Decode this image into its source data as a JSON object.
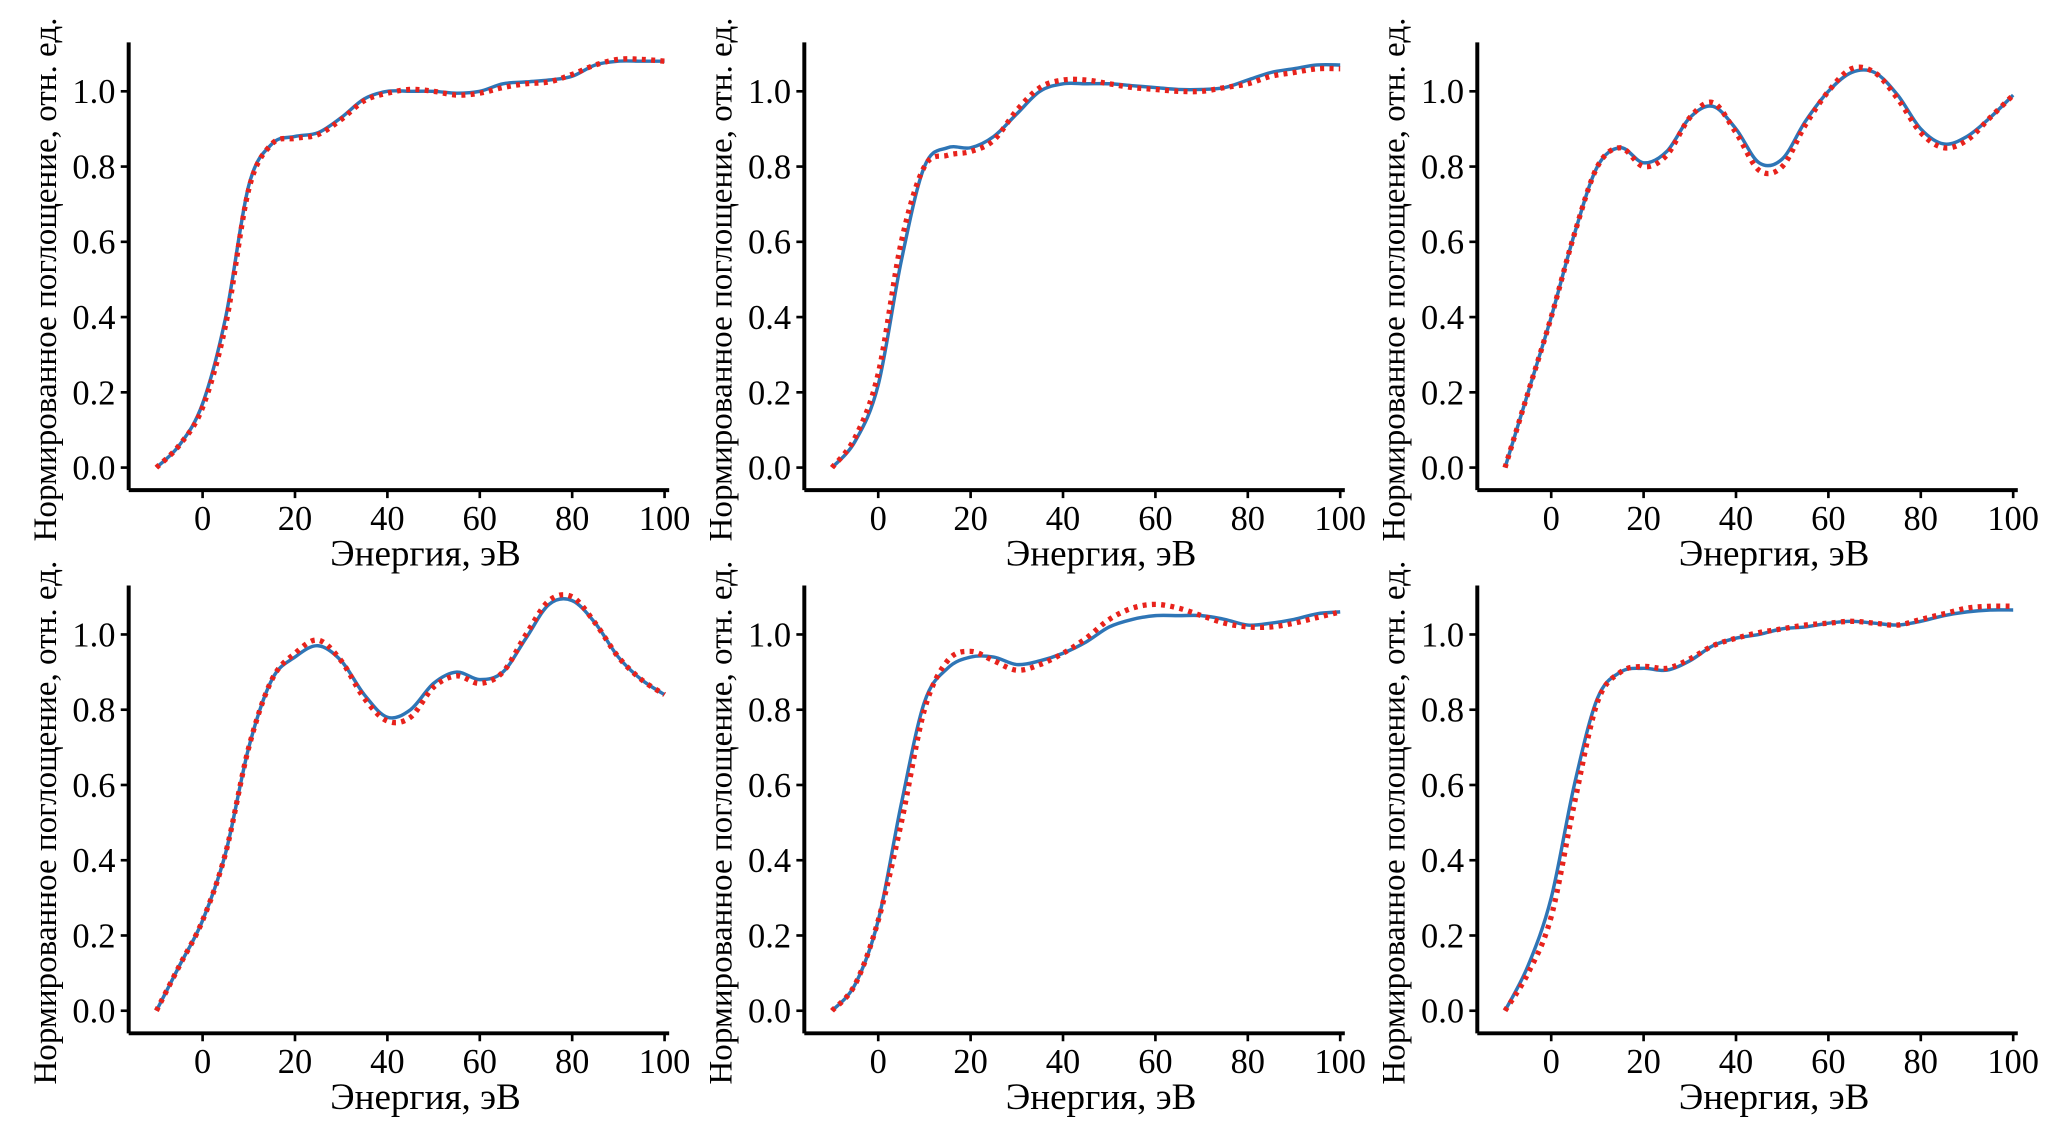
{
  "chart_data": [
    {
      "type": "line",
      "xlabel": "Энергия, эВ",
      "ylabel": "Нормированное поглощение, отн. ед.",
      "x": [
        -10,
        -5,
        0,
        5,
        10,
        15,
        20,
        25,
        30,
        35,
        40,
        45,
        50,
        55,
        60,
        65,
        70,
        75,
        80,
        85,
        90,
        95,
        100
      ],
      "xlim": [
        -16,
        101
      ],
      "ylim": [
        -0.06,
        1.13
      ],
      "xticks": [
        0,
        20,
        40,
        60,
        80,
        100
      ],
      "yticks": [
        {
          "value": 0,
          "label": "0.0"
        },
        {
          "value": 0.2,
          "label": "0.2"
        },
        {
          "value": 0.4,
          "label": "0.4"
        },
        {
          "value": 0.6,
          "label": "0.6"
        },
        {
          "value": 0.8,
          "label": "0.8"
        },
        {
          "value": 1,
          "label": "1.0"
        }
      ],
      "series": [
        {
          "color": "#2e75b6",
          "dash": "solid",
          "values": [
            0,
            0.06,
            0.17,
            0.4,
            0.75,
            0.86,
            0.88,
            0.89,
            0.93,
            0.98,
            1.0,
            1.0,
            1.0,
            0.995,
            1.0,
            1.02,
            1.025,
            1.03,
            1.04,
            1.07,
            1.08,
            1.08,
            1.08
          ]
        },
        {
          "color": "#e8221c",
          "dash": "dotted",
          "values": [
            0,
            0.06,
            0.16,
            0.38,
            0.74,
            0.86,
            0.875,
            0.885,
            0.925,
            0.975,
            0.995,
            1.005,
            1.0,
            0.99,
            0.995,
            1.01,
            1.02,
            1.025,
            1.045,
            1.07,
            1.085,
            1.085,
            1.08
          ]
        }
      ]
    },
    {
      "type": "line",
      "xlabel": "Энергия, эВ",
      "ylabel": "Нормированное поглощение, отн. ед.",
      "x": [
        -10,
        -5,
        0,
        5,
        10,
        15,
        20,
        25,
        30,
        35,
        40,
        45,
        50,
        55,
        60,
        65,
        70,
        75,
        80,
        85,
        90,
        95,
        100
      ],
      "xlim": [
        -16,
        101
      ],
      "ylim": [
        -0.06,
        1.13
      ],
      "xticks": [
        0,
        20,
        40,
        60,
        80,
        100
      ],
      "yticks": [
        {
          "value": 0,
          "label": "0.0"
        },
        {
          "value": 0.2,
          "label": "0.2"
        },
        {
          "value": 0.4,
          "label": "0.4"
        },
        {
          "value": 0.6,
          "label": "0.6"
        },
        {
          "value": 0.8,
          "label": "0.8"
        },
        {
          "value": 1,
          "label": "1.0"
        }
      ],
      "series": [
        {
          "color": "#2e75b6",
          "dash": "solid",
          "values": [
            0,
            0.07,
            0.22,
            0.55,
            0.8,
            0.85,
            0.85,
            0.88,
            0.94,
            1.0,
            1.02,
            1.02,
            1.02,
            1.015,
            1.01,
            1.005,
            1.005,
            1.01,
            1.03,
            1.05,
            1.06,
            1.07,
            1.07
          ]
        },
        {
          "color": "#e8221c",
          "dash": "dotted",
          "values": [
            0,
            0.08,
            0.25,
            0.6,
            0.8,
            0.83,
            0.84,
            0.87,
            0.95,
            1.01,
            1.03,
            1.03,
            1.02,
            1.01,
            1.005,
            1.0,
            1.0,
            1.01,
            1.02,
            1.04,
            1.05,
            1.06,
            1.06
          ]
        }
      ]
    },
    {
      "type": "line",
      "xlabel": "Энергия, эВ",
      "ylabel": "Нормированное поглощение, отн. ед.",
      "x": [
        -10,
        -5,
        0,
        5,
        10,
        15,
        20,
        25,
        30,
        35,
        40,
        45,
        50,
        55,
        60,
        65,
        70,
        75,
        80,
        85,
        90,
        95,
        100
      ],
      "xlim": [
        -16,
        101
      ],
      "ylim": [
        -0.06,
        1.13
      ],
      "xticks": [
        0,
        20,
        40,
        60,
        80,
        100
      ],
      "yticks": [
        {
          "value": 0,
          "label": "0.0"
        },
        {
          "value": 0.2,
          "label": "0.2"
        },
        {
          "value": 0.4,
          "label": "0.4"
        },
        {
          "value": 0.6,
          "label": "0.6"
        },
        {
          "value": 0.8,
          "label": "0.8"
        },
        {
          "value": 1,
          "label": "1.0"
        }
      ],
      "series": [
        {
          "color": "#2e75b6",
          "dash": "solid",
          "values": [
            0,
            0.2,
            0.4,
            0.62,
            0.8,
            0.85,
            0.81,
            0.84,
            0.93,
            0.96,
            0.9,
            0.81,
            0.82,
            0.92,
            1.0,
            1.05,
            1.05,
            0.99,
            0.9,
            0.86,
            0.88,
            0.93,
            0.99
          ]
        },
        {
          "color": "#e8221c",
          "dash": "dotted",
          "values": [
            0,
            0.2,
            0.4,
            0.62,
            0.8,
            0.85,
            0.8,
            0.83,
            0.93,
            0.97,
            0.89,
            0.79,
            0.8,
            0.91,
            1.0,
            1.06,
            1.05,
            0.98,
            0.89,
            0.85,
            0.87,
            0.93,
            0.99
          ]
        }
      ]
    },
    {
      "type": "line",
      "xlabel": "Энергия, эВ",
      "ylabel": "Нормированное поглощение, отн. ед.",
      "x": [
        -10,
        -5,
        0,
        5,
        10,
        15,
        20,
        25,
        30,
        35,
        40,
        45,
        50,
        55,
        60,
        65,
        70,
        75,
        80,
        85,
        90,
        95,
        100
      ],
      "xlim": [
        -16,
        101
      ],
      "ylim": [
        -0.06,
        1.13
      ],
      "xticks": [
        0,
        20,
        40,
        60,
        80,
        100
      ],
      "yticks": [
        {
          "value": 0,
          "label": "0.0"
        },
        {
          "value": 0.2,
          "label": "0.2"
        },
        {
          "value": 0.4,
          "label": "0.4"
        },
        {
          "value": 0.6,
          "label": "0.6"
        },
        {
          "value": 0.8,
          "label": "0.8"
        },
        {
          "value": 1,
          "label": "1.0"
        }
      ],
      "series": [
        {
          "color": "#2e75b6",
          "dash": "solid",
          "values": [
            0,
            0.12,
            0.24,
            0.42,
            0.7,
            0.88,
            0.94,
            0.97,
            0.93,
            0.84,
            0.78,
            0.8,
            0.87,
            0.9,
            0.88,
            0.9,
            0.99,
            1.08,
            1.09,
            1.03,
            0.94,
            0.88,
            0.84
          ]
        },
        {
          "color": "#e8221c",
          "dash": "dotted",
          "values": [
            0,
            0.12,
            0.24,
            0.42,
            0.7,
            0.88,
            0.95,
            0.985,
            0.93,
            0.83,
            0.77,
            0.78,
            0.86,
            0.89,
            0.87,
            0.9,
            1.0,
            1.09,
            1.1,
            1.03,
            0.94,
            0.88,
            0.84
          ]
        }
      ]
    },
    {
      "type": "line",
      "xlabel": "Энергия, эВ",
      "ylabel": "Нормированное поглощение, отн. ед.",
      "x": [
        -10,
        -5,
        0,
        5,
        10,
        15,
        20,
        25,
        30,
        35,
        40,
        45,
        50,
        55,
        60,
        65,
        70,
        75,
        80,
        85,
        90,
        95,
        100
      ],
      "xlim": [
        -16,
        101
      ],
      "ylim": [
        -0.06,
        1.13
      ],
      "xticks": [
        0,
        20,
        40,
        60,
        80,
        100
      ],
      "yticks": [
        {
          "value": 0,
          "label": "0.0"
        },
        {
          "value": 0.2,
          "label": "0.2"
        },
        {
          "value": 0.4,
          "label": "0.4"
        },
        {
          "value": 0.6,
          "label": "0.6"
        },
        {
          "value": 0.8,
          "label": "0.8"
        },
        {
          "value": 1,
          "label": "1.0"
        }
      ],
      "series": [
        {
          "color": "#2e75b6",
          "dash": "solid",
          "values": [
            0,
            0.07,
            0.24,
            0.55,
            0.82,
            0.91,
            0.94,
            0.94,
            0.92,
            0.93,
            0.95,
            0.98,
            1.02,
            1.04,
            1.05,
            1.05,
            1.05,
            1.04,
            1.025,
            1.03,
            1.04,
            1.055,
            1.06
          ]
        },
        {
          "color": "#e8221c",
          "dash": "dotted",
          "values": [
            0,
            0.07,
            0.24,
            0.5,
            0.8,
            0.93,
            0.955,
            0.93,
            0.905,
            0.92,
            0.95,
            0.99,
            1.04,
            1.07,
            1.08,
            1.07,
            1.05,
            1.03,
            1.02,
            1.02,
            1.03,
            1.045,
            1.06
          ]
        }
      ]
    },
    {
      "type": "line",
      "xlabel": "Энергия, эВ",
      "ylabel": "Нормированное поглощение, отн. ед.",
      "x": [
        -10,
        -5,
        0,
        5,
        10,
        15,
        20,
        25,
        30,
        35,
        40,
        45,
        50,
        55,
        60,
        65,
        70,
        75,
        80,
        85,
        90,
        95,
        100
      ],
      "xlim": [
        -16,
        101
      ],
      "ylim": [
        -0.06,
        1.13
      ],
      "xticks": [
        0,
        20,
        40,
        60,
        80,
        100
      ],
      "yticks": [
        {
          "value": 0,
          "label": "0.0"
        },
        {
          "value": 0.2,
          "label": "0.2"
        },
        {
          "value": 0.4,
          "label": "0.4"
        },
        {
          "value": 0.6,
          "label": "0.6"
        },
        {
          "value": 0.8,
          "label": "0.8"
        },
        {
          "value": 1,
          "label": "1.0"
        }
      ],
      "series": [
        {
          "color": "#2e75b6",
          "dash": "solid",
          "values": [
            0,
            0.12,
            0.3,
            0.6,
            0.83,
            0.9,
            0.91,
            0.905,
            0.93,
            0.97,
            0.99,
            1.0,
            1.015,
            1.02,
            1.03,
            1.035,
            1.03,
            1.025,
            1.035,
            1.05,
            1.06,
            1.065,
            1.065
          ]
        },
        {
          "color": "#e8221c",
          "dash": "dotted",
          "values": [
            0,
            0.1,
            0.25,
            0.55,
            0.82,
            0.9,
            0.915,
            0.91,
            0.935,
            0.97,
            0.99,
            1.005,
            1.015,
            1.025,
            1.03,
            1.035,
            1.03,
            1.025,
            1.04,
            1.055,
            1.07,
            1.075,
            1.075
          ]
        }
      ]
    }
  ]
}
